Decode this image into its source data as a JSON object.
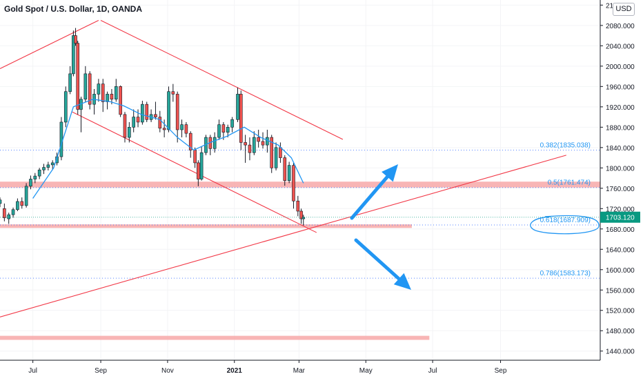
{
  "header": {
    "title": "Gold Spot / U.S. Dollar, 1D, OANDA",
    "currency": "USD"
  },
  "colors": {
    "up": "#26a69a",
    "down": "#ef5350",
    "candle": "#131722",
    "ma": "#2196f3",
    "trendline": "#f23645",
    "zone": "#f7a8a8",
    "fib": "#2962ff",
    "fib_text": "#2196f3",
    "arrow": "#2196f3",
    "price_tag": "#089981"
  },
  "chart_data": {
    "type": "candlestick",
    "symbol": "Gold Spot / U.S. Dollar",
    "interval": "1D",
    "exchange": "OANDA",
    "currency": "USD",
    "last_price": "1703.120",
    "x_ticks": [
      "Jul",
      "Sep",
      "Nov",
      "2021",
      "Mar",
      "May",
      "Jul",
      "Sep"
    ],
    "y_ticks": [
      "2120.000",
      "2080.000",
      "2040.000",
      "2000.000",
      "1960.000",
      "1920.000",
      "1880.000",
      "1840.000",
      "1800.000",
      "1760.000",
      "1720.000",
      "1680.000",
      "1640.000",
      "1600.000",
      "1560.000",
      "1520.000",
      "1480.000",
      "1440.000"
    ],
    "ylim": [
      1422,
      2130
    ],
    "fib_levels": [
      {
        "label": "0.382(1835.038)",
        "value": 1835.038
      },
      {
        "label": "0.5(1761.474)",
        "value": 1761.474
      },
      {
        "label": "0.618(1687.909)",
        "value": 1687.909
      },
      {
        "label": "0.786(1583.173)",
        "value": 1583.173
      }
    ],
    "zones": [
      {
        "low": 1761.5,
        "high": 1773,
        "from": "2020-06-01",
        "to": "2021-12-01"
      },
      {
        "low": 1682,
        "high": 1689,
        "from": "2020-06-01",
        "to": "2021-06-12"
      },
      {
        "low": 1462,
        "high": 1470,
        "from": "2020-06-01",
        "to": "2021-06-28"
      }
    ],
    "trendlines": [
      {
        "from": [
          "2020-06-01",
          1995
        ],
        "to": [
          "2020-08-30",
          2090
        ]
      },
      {
        "from": [
          "2020-09-01",
          2090
        ],
        "to": [
          "2021-04-10",
          1856
        ]
      },
      {
        "from": [
          "2020-08-06",
          1910
        ],
        "to": [
          "2021-03-17",
          1673
        ]
      },
      {
        "from": [
          "2020-06-01",
          1507
        ],
        "to": [
          "2021-10-31",
          1825
        ]
      }
    ],
    "moving_average": [
      [
        "2020-07-01",
        1740
      ],
      [
        "2020-07-20",
        1800
      ],
      [
        "2020-08-07",
        1920
      ],
      [
        "2020-08-25",
        1935
      ],
      [
        "2020-09-10",
        1930
      ],
      [
        "2020-09-22",
        1922
      ],
      [
        "2020-10-08",
        1905
      ],
      [
        "2020-10-25",
        1895
      ],
      [
        "2020-11-10",
        1860
      ],
      [
        "2020-11-25",
        1835
      ],
      [
        "2020-12-10",
        1850
      ],
      [
        "2020-12-25",
        1862
      ],
      [
        "2021-01-10",
        1880
      ],
      [
        "2021-01-25",
        1860
      ],
      [
        "2021-02-10",
        1845
      ],
      [
        "2021-02-22",
        1820
      ],
      [
        "2021-03-05",
        1770
      ]
    ],
    "candles": [
      {
        "d": "2020-06-01",
        "o": 1730,
        "h": 1742,
        "l": 1723,
        "c": 1737
      },
      {
        "d": "2020-06-05",
        "o": 1720,
        "h": 1730,
        "l": 1695,
        "c": 1702
      },
      {
        "d": "2020-06-09",
        "o": 1700,
        "h": 1712,
        "l": 1690,
        "c": 1708
      },
      {
        "d": "2020-06-13",
        "o": 1708,
        "h": 1722,
        "l": 1702,
        "c": 1718
      },
      {
        "d": "2020-06-17",
        "o": 1718,
        "h": 1740,
        "l": 1715,
        "c": 1734
      },
      {
        "d": "2020-06-21",
        "o": 1734,
        "h": 1742,
        "l": 1720,
        "c": 1726
      },
      {
        "d": "2020-06-25",
        "o": 1726,
        "h": 1770,
        "l": 1722,
        "c": 1764
      },
      {
        "d": "2020-06-29",
        "o": 1764,
        "h": 1785,
        "l": 1758,
        "c": 1778
      },
      {
        "d": "2020-07-03",
        "o": 1778,
        "h": 1790,
        "l": 1770,
        "c": 1784
      },
      {
        "d": "2020-07-07",
        "o": 1784,
        "h": 1800,
        "l": 1778,
        "c": 1796
      },
      {
        "d": "2020-07-11",
        "o": 1796,
        "h": 1808,
        "l": 1788,
        "c": 1801
      },
      {
        "d": "2020-07-15",
        "o": 1801,
        "h": 1812,
        "l": 1795,
        "c": 1806
      },
      {
        "d": "2020-07-19",
        "o": 1806,
        "h": 1815,
        "l": 1796,
        "c": 1810
      },
      {
        "d": "2020-07-23",
        "o": 1810,
        "h": 1830,
        "l": 1805,
        "c": 1822
      },
      {
        "d": "2020-07-27",
        "o": 1822,
        "h": 1900,
        "l": 1815,
        "c": 1890
      },
      {
        "d": "2020-07-31",
        "o": 1890,
        "h": 1960,
        "l": 1880,
        "c": 1950
      },
      {
        "d": "2020-08-04",
        "o": 1950,
        "h": 2000,
        "l": 1945,
        "c": 1985
      },
      {
        "d": "2020-08-07",
        "o": 1985,
        "h": 2070,
        "l": 1980,
        "c": 2060
      },
      {
        "d": "2020-08-09",
        "o": 2060,
        "h": 2075,
        "l": 2040,
        "c": 2045
      },
      {
        "d": "2020-08-11",
        "o": 2045,
        "h": 2050,
        "l": 1905,
        "c": 1915
      },
      {
        "d": "2020-08-14",
        "o": 1915,
        "h": 1940,
        "l": 1870,
        "c": 1935
      },
      {
        "d": "2020-08-18",
        "o": 1935,
        "h": 2000,
        "l": 1930,
        "c": 1985
      },
      {
        "d": "2020-08-22",
        "o": 1985,
        "h": 1990,
        "l": 1915,
        "c": 1925
      },
      {
        "d": "2020-08-26",
        "o": 1925,
        "h": 1955,
        "l": 1905,
        "c": 1945
      },
      {
        "d": "2020-08-30",
        "o": 1945,
        "h": 1975,
        "l": 1930,
        "c": 1965
      },
      {
        "d": "2020-09-03",
        "o": 1965,
        "h": 1975,
        "l": 1910,
        "c": 1930
      },
      {
        "d": "2020-09-07",
        "o": 1930,
        "h": 1950,
        "l": 1915,
        "c": 1945
      },
      {
        "d": "2020-09-11",
        "o": 1945,
        "h": 1955,
        "l": 1925,
        "c": 1935
      },
      {
        "d": "2020-09-15",
        "o": 1935,
        "h": 1975,
        "l": 1930,
        "c": 1960
      },
      {
        "d": "2020-09-19",
        "o": 1960,
        "h": 1962,
        "l": 1900,
        "c": 1905
      },
      {
        "d": "2020-09-23",
        "o": 1905,
        "h": 1910,
        "l": 1850,
        "c": 1860
      },
      {
        "d": "2020-09-27",
        "o": 1860,
        "h": 1890,
        "l": 1850,
        "c": 1880
      },
      {
        "d": "2020-10-01",
        "o": 1880,
        "h": 1915,
        "l": 1870,
        "c": 1900
      },
      {
        "d": "2020-10-05",
        "o": 1900,
        "h": 1915,
        "l": 1880,
        "c": 1890
      },
      {
        "d": "2020-10-09",
        "o": 1890,
        "h": 1932,
        "l": 1885,
        "c": 1925
      },
      {
        "d": "2020-10-13",
        "o": 1925,
        "h": 1930,
        "l": 1890,
        "c": 1895
      },
      {
        "d": "2020-10-17",
        "o": 1895,
        "h": 1915,
        "l": 1890,
        "c": 1905
      },
      {
        "d": "2020-10-21",
        "o": 1905,
        "h": 1930,
        "l": 1895,
        "c": 1900
      },
      {
        "d": "2020-10-25",
        "o": 1900,
        "h": 1912,
        "l": 1870,
        "c": 1878
      },
      {
        "d": "2020-10-29",
        "o": 1878,
        "h": 1895,
        "l": 1860,
        "c": 1875
      },
      {
        "d": "2020-11-02",
        "o": 1875,
        "h": 1960,
        "l": 1870,
        "c": 1950
      },
      {
        "d": "2020-11-06",
        "o": 1950,
        "h": 1965,
        "l": 1930,
        "c": 1945
      },
      {
        "d": "2020-11-10",
        "o": 1945,
        "h": 1950,
        "l": 1850,
        "c": 1875
      },
      {
        "d": "2020-11-14",
        "o": 1875,
        "h": 1895,
        "l": 1860,
        "c": 1885
      },
      {
        "d": "2020-11-18",
        "o": 1885,
        "h": 1890,
        "l": 1860,
        "c": 1868
      },
      {
        "d": "2020-11-22",
        "o": 1868,
        "h": 1872,
        "l": 1820,
        "c": 1835
      },
      {
        "d": "2020-11-26",
        "o": 1835,
        "h": 1840,
        "l": 1800,
        "c": 1810
      },
      {
        "d": "2020-11-29",
        "o": 1810,
        "h": 1815,
        "l": 1764,
        "c": 1778
      },
      {
        "d": "2020-12-02",
        "o": 1778,
        "h": 1842,
        "l": 1775,
        "c": 1830
      },
      {
        "d": "2020-12-06",
        "o": 1830,
        "h": 1865,
        "l": 1825,
        "c": 1860
      },
      {
        "d": "2020-12-10",
        "o": 1860,
        "h": 1865,
        "l": 1825,
        "c": 1838
      },
      {
        "d": "2020-12-14",
        "o": 1838,
        "h": 1870,
        "l": 1830,
        "c": 1860
      },
      {
        "d": "2020-12-18",
        "o": 1860,
        "h": 1895,
        "l": 1855,
        "c": 1885
      },
      {
        "d": "2020-12-22",
        "o": 1885,
        "h": 1890,
        "l": 1855,
        "c": 1870
      },
      {
        "d": "2020-12-26",
        "o": 1870,
        "h": 1885,
        "l": 1860,
        "c": 1880
      },
      {
        "d": "2020-12-30",
        "o": 1880,
        "h": 1900,
        "l": 1870,
        "c": 1895
      },
      {
        "d": "2021-01-04",
        "o": 1895,
        "h": 1958,
        "l": 1890,
        "c": 1945
      },
      {
        "d": "2021-01-07",
        "o": 1945,
        "h": 1952,
        "l": 1835,
        "c": 1850
      },
      {
        "d": "2021-01-11",
        "o": 1850,
        "h": 1865,
        "l": 1810,
        "c": 1845
      },
      {
        "d": "2021-01-15",
        "o": 1845,
        "h": 1860,
        "l": 1815,
        "c": 1830
      },
      {
        "d": "2021-01-19",
        "o": 1830,
        "h": 1872,
        "l": 1825,
        "c": 1860
      },
      {
        "d": "2021-01-23",
        "o": 1860,
        "h": 1875,
        "l": 1840,
        "c": 1852
      },
      {
        "d": "2021-01-27",
        "o": 1852,
        "h": 1870,
        "l": 1838,
        "c": 1845
      },
      {
        "d": "2021-01-31",
        "o": 1845,
        "h": 1875,
        "l": 1830,
        "c": 1860
      },
      {
        "d": "2021-02-04",
        "o": 1860,
        "h": 1865,
        "l": 1790,
        "c": 1800
      },
      {
        "d": "2021-02-08",
        "o": 1800,
        "h": 1850,
        "l": 1795,
        "c": 1840
      },
      {
        "d": "2021-02-12",
        "o": 1840,
        "h": 1850,
        "l": 1810,
        "c": 1820
      },
      {
        "d": "2021-02-16",
        "o": 1820,
        "h": 1825,
        "l": 1765,
        "c": 1775
      },
      {
        "d": "2021-02-20",
        "o": 1775,
        "h": 1812,
        "l": 1770,
        "c": 1805
      },
      {
        "d": "2021-02-24",
        "o": 1805,
        "h": 1810,
        "l": 1720,
        "c": 1735
      },
      {
        "d": "2021-02-28",
        "o": 1735,
        "h": 1745,
        "l": 1705,
        "c": 1715
      },
      {
        "d": "2021-03-03",
        "o": 1715,
        "h": 1720,
        "l": 1690,
        "c": 1700
      },
      {
        "d": "2021-03-05",
        "o": 1700,
        "h": 1708,
        "l": 1687,
        "c": 1703
      }
    ]
  }
}
